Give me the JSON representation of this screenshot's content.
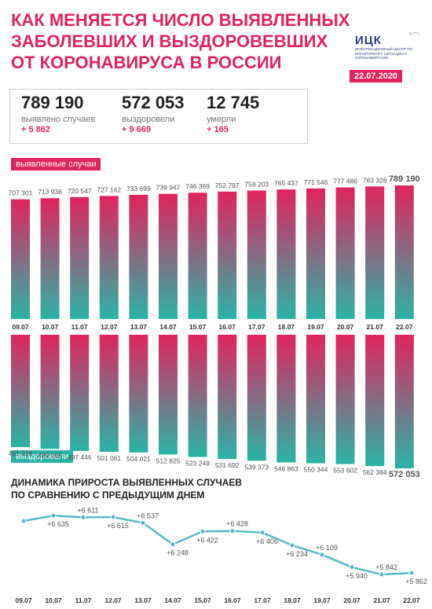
{
  "header": {
    "title_lines": [
      "КАК МЕНЯЕТСЯ ЧИСЛО ВЫЯВЛЕННЫХ",
      "ЗАБОЛЕВШИХ И ВЫЗДОРОВЕВШИХ",
      "ОТ КОРОНАВИРУСА В РОССИИ"
    ],
    "logo_name": "ИЦК",
    "logo_subtitle": "ИНФОРМАЦИОННЫЙ ЦЕНТР ПО МОНИТОРИНГУ СИТУАЦИИ С КОРОНАВИРУСОМ",
    "date": "22.07.2020"
  },
  "stats": [
    {
      "value": "789 190",
      "label": "выявлено случаев",
      "delta": "+ 5 862"
    },
    {
      "value": "572 053",
      "label": "выздоровели",
      "delta": "+ 9 669"
    },
    {
      "value": "12 745",
      "label": "умерли",
      "delta": "+ 165"
    }
  ],
  "colors": {
    "accent": "#e0245e",
    "teal": "#2bb3a6",
    "navy": "#2a3f7e"
  },
  "chart_data": [
    {
      "type": "bar",
      "series_label": "выявленные случаи",
      "categories": [
        "09.07",
        "10.07",
        "11.07",
        "12.07",
        "13.07",
        "14.07",
        "15.07",
        "16.07",
        "17.07",
        "18.07",
        "19.07",
        "20.07",
        "21.07",
        "22.07"
      ],
      "values": [
        707301,
        713936,
        720547,
        727162,
        733699,
        739947,
        746369,
        752797,
        759203,
        765437,
        771546,
        777486,
        783328,
        789190
      ],
      "value_labels": [
        "707 301",
        "713 936",
        "720 547",
        "727 162",
        "733 699",
        "739 947",
        "746 369",
        "752 797",
        "759 203",
        "765 437",
        "771 546",
        "777 486",
        "783 328",
        "789 190"
      ]
    },
    {
      "type": "bar",
      "series_label": "выздоровели",
      "categories": [
        "09.07",
        "10.07",
        "11.07",
        "12.07",
        "13.07",
        "14.07",
        "15.07",
        "16.07",
        "17.07",
        "18.07",
        "19.07",
        "20.07",
        "21.07",
        "22.07"
      ],
      "values": [
        481316,
        489068,
        497446,
        501061,
        504021,
        512825,
        523249,
        531692,
        539373,
        546863,
        550344,
        553602,
        562384,
        572053
      ],
      "value_labels": [
        "481 316",
        "489 068",
        "497 446",
        "501 061",
        "504 021",
        "512 825",
        "523 249",
        "531 692",
        "539 373",
        "546 863",
        "550 344",
        "553 602",
        "562 384",
        "572 053"
      ]
    },
    {
      "type": "line",
      "title_lines": [
        "ДИНАМИКА ПРИРОСТА ВЫЯВЛЕННЫХ СЛУЧАЕВ",
        "ПО СРАВНЕНИЮ С ПРЕДЫДУЩИМ ДНЕМ"
      ],
      "categories": [
        "09.07",
        "10.07",
        "11.07",
        "12.07",
        "13.07",
        "14.07",
        "15.07",
        "16.07",
        "17.07",
        "18.07",
        "19.07",
        "20.07",
        "21.07",
        "22.07"
      ],
      "values": [
        6562,
        6635,
        6611,
        6615,
        6537,
        6248,
        6422,
        6428,
        6406,
        6234,
        6109,
        5940,
        5842,
        5862
      ],
      "value_labels": [
        null,
        "+6 635",
        "+6 611",
        "+6 615",
        "+6 537",
        "+6 248",
        "+6 422",
        "+6 428",
        "+6 406",
        "+6 234",
        "+6 109",
        "+5 940",
        "+5 842",
        "+5 862"
      ]
    }
  ]
}
